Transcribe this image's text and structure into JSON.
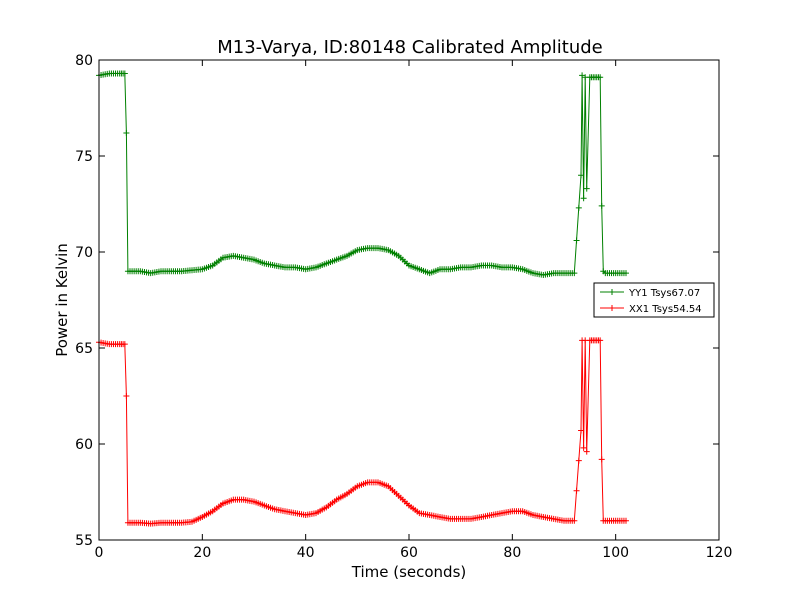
{
  "chart_data": {
    "type": "line",
    "title": "M13-Varya, ID:80148 Calibrated Amplitude",
    "xlabel": "Time (seconds)",
    "ylabel": "Power in Kelvin",
    "xlim": [
      0,
      120
    ],
    "ylim": [
      55,
      80
    ],
    "xticks": [
      "0",
      "20",
      "40",
      "60",
      "80",
      "100",
      "120"
    ],
    "yticks": [
      "55",
      "60",
      "65",
      "70",
      "75",
      "80"
    ],
    "grid": false,
    "legend_position": "right",
    "marker": "+",
    "series": [
      {
        "name": "YY1 Tsys67.07",
        "color": "#008000",
        "x": [
          0,
          2,
          4,
          5,
          5.3,
          5.6,
          8,
          10,
          12,
          14,
          16,
          18,
          20,
          22,
          24,
          26,
          28,
          30,
          32,
          34,
          36,
          38,
          40,
          42,
          44,
          46,
          48,
          50,
          52,
          54,
          56,
          58,
          60,
          62,
          64,
          66,
          68,
          70,
          72,
          74,
          76,
          78,
          80,
          82,
          84,
          86,
          88,
          90,
          92,
          93.3,
          93.5,
          93.8,
          94.1,
          94.4,
          95,
          96,
          97,
          97.3,
          97.6,
          98,
          100,
          102
        ],
        "y": [
          79.2,
          79.3,
          79.3,
          79.3,
          76.2,
          69.0,
          69.0,
          68.9,
          69.0,
          69.0,
          69.0,
          69.05,
          69.1,
          69.3,
          69.7,
          69.8,
          69.7,
          69.6,
          69.4,
          69.3,
          69.2,
          69.2,
          69.1,
          69.2,
          69.4,
          69.6,
          69.8,
          70.1,
          70.2,
          70.2,
          70.1,
          69.8,
          69.3,
          69.1,
          68.9,
          69.1,
          69.1,
          69.2,
          69.2,
          69.3,
          69.3,
          69.2,
          69.2,
          69.1,
          68.9,
          68.8,
          68.9,
          68.9,
          68.9,
          74.0,
          79.2,
          72.8,
          79.1,
          73.3,
          79.1,
          79.1,
          79.1,
          72.4,
          69.0,
          68.9,
          68.9,
          68.9
        ]
      },
      {
        "name": "XX1 Tsys54.54",
        "color": "#ff0000",
        "x": [
          0,
          2,
          4,
          5,
          5.3,
          5.6,
          8,
          10,
          12,
          14,
          16,
          18,
          20,
          22,
          24,
          26,
          28,
          30,
          32,
          34,
          36,
          38,
          40,
          42,
          44,
          46,
          48,
          50,
          52,
          54,
          56,
          58,
          60,
          62,
          64,
          66,
          68,
          70,
          72,
          74,
          76,
          78,
          80,
          82,
          84,
          86,
          88,
          90,
          92,
          93.3,
          93.5,
          93.8,
          94.1,
          94.4,
          95,
          96,
          97,
          97.3,
          97.6,
          98,
          100,
          102
        ],
        "y": [
          65.3,
          65.2,
          65.2,
          65.2,
          62.5,
          55.9,
          55.9,
          55.85,
          55.9,
          55.9,
          55.9,
          55.95,
          56.2,
          56.5,
          56.9,
          57.1,
          57.1,
          57.0,
          56.8,
          56.6,
          56.5,
          56.4,
          56.3,
          56.4,
          56.7,
          57.1,
          57.4,
          57.8,
          58.0,
          58.0,
          57.8,
          57.3,
          56.8,
          56.4,
          56.3,
          56.2,
          56.1,
          56.1,
          56.1,
          56.2,
          56.3,
          56.4,
          56.5,
          56.5,
          56.3,
          56.2,
          56.1,
          56.0,
          56.0,
          60.7,
          65.4,
          59.8,
          65.4,
          59.6,
          65.4,
          65.4,
          65.4,
          59.2,
          56.0,
          56.0,
          56.0,
          56.0
        ]
      }
    ]
  }
}
